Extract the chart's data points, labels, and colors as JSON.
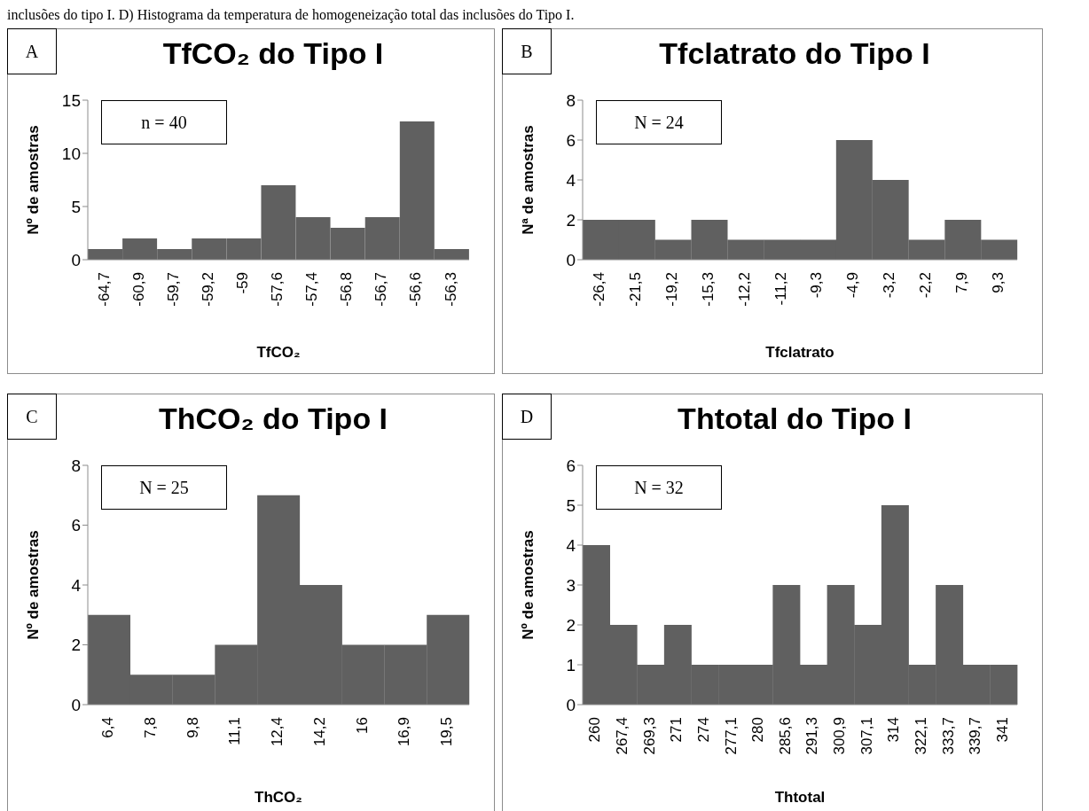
{
  "chart_data": [
    {
      "type": "bar",
      "title": "TfCO₂ do Tipo I",
      "xlabel": "TfCO₂",
      "ylabel": "Nº de amostras",
      "categories": [
        "-64,7",
        "-60,9",
        "-59,7",
        "-59,2",
        "-59",
        "-57,6",
        "-57,4",
        "-56,8",
        "-56,7",
        "-56,6",
        "-56,3"
      ],
      "values": [
        1,
        2,
        1,
        2,
        2,
        7,
        4,
        3,
        4,
        13,
        1
      ],
      "color": "#606060",
      "ylim": [
        0,
        15
      ],
      "yticks": [
        0,
        5,
        10,
        15
      ],
      "grid": false,
      "annotations": [
        "A",
        "n = 40",
        "inclusões do tipo I. D) Histograma da temperatura de homogeneização total das inclusões do Tipo I."
      ]
    },
    {
      "type": "bar",
      "title": "Tfclatrato do Tipo I",
      "xlabel": "Tfclatrato",
      "ylabel": "Nª de amostras",
      "categories": [
        "-26,4",
        "-21,5",
        "-19,2",
        "-15,3",
        "-12,2",
        "-11,2",
        "-9,3",
        "-4,9",
        "-3,2",
        "-2,2",
        "7,9",
        "9,3"
      ],
      "values": [
        2,
        2,
        1,
        2,
        1,
        1,
        1,
        6,
        4,
        1,
        2,
        1
      ],
      "color": "#606060",
      "ylim": [
        0,
        8
      ],
      "yticks": [
        0,
        2,
        4,
        6,
        8
      ],
      "grid": false,
      "annotations": [
        "B",
        "N = 24"
      ]
    },
    {
      "type": "bar",
      "title": "ThCO₂ do Tipo I",
      "xlabel": "ThCO₂",
      "ylabel": "Nº  de amostras",
      "categories": [
        "6,4",
        "7,8",
        "9,8",
        "11,1",
        "12,4",
        "14,2",
        "16",
        "16,9",
        "19,5"
      ],
      "values": [
        3,
        1,
        1,
        2,
        7,
        4,
        2,
        2,
        3
      ],
      "color": "#606060",
      "ylim": [
        0,
        8
      ],
      "yticks": [
        0,
        2,
        4,
        6,
        8
      ],
      "grid": false,
      "annotations": [
        "C",
        "N = 25"
      ]
    },
    {
      "type": "bar",
      "title": "Thtotal do Tipo I",
      "xlabel": "Thtotal",
      "ylabel": "Nº de amostras",
      "categories": [
        "260",
        "267,4",
        "269,3",
        "271",
        "274",
        "277,1",
        "280",
        "285,6",
        "291,3",
        "300,9",
        "307,1",
        "314",
        "322,1",
        "333,7",
        "339,7",
        "341"
      ],
      "values": [
        4,
        2,
        1,
        2,
        1,
        1,
        1,
        3,
        1,
        3,
        2,
        5,
        1,
        3,
        1,
        1
      ],
      "color": "#606060",
      "ylim": [
        0,
        6
      ],
      "yticks": [
        0,
        1,
        2,
        3,
        4,
        5,
        6
      ],
      "grid": false,
      "annotations": [
        "D",
        "N = 32"
      ]
    }
  ]
}
